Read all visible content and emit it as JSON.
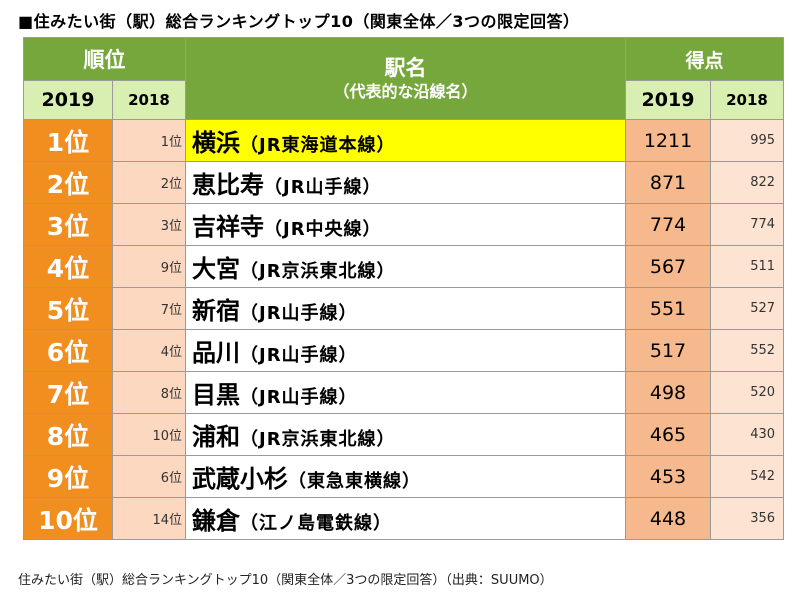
{
  "title": "■住みたい街（駅）総合ランキングトップ10（関東全体／3つの限定回答）",
  "header": {
    "rank_group": "順位",
    "station_main": "駅名",
    "station_sub": "（代表的な沿線名）",
    "points_group": "得点",
    "year_2019": "2019",
    "year_2018": "2018"
  },
  "rows": [
    {
      "rank": "1位",
      "prev": "1位",
      "station": "横浜",
      "line": "（JR東海道本線）",
      "p2019": "1211",
      "p2018": "995"
    },
    {
      "rank": "2位",
      "prev": "2位",
      "station": "恵比寿",
      "line": "（JR山手線）",
      "p2019": "871",
      "p2018": "822"
    },
    {
      "rank": "3位",
      "prev": "3位",
      "station": "吉祥寺",
      "line": "（JR中央線）",
      "p2019": "774",
      "p2018": "774"
    },
    {
      "rank": "4位",
      "prev": "9位",
      "station": "大宮",
      "line": "（JR京浜東北線）",
      "p2019": "567",
      "p2018": "511"
    },
    {
      "rank": "5位",
      "prev": "7位",
      "station": "新宿",
      "line": "（JR山手線）",
      "p2019": "551",
      "p2018": "527"
    },
    {
      "rank": "6位",
      "prev": "4位",
      "station": "品川",
      "line": "（JR山手線）",
      "p2019": "517",
      "p2018": "552"
    },
    {
      "rank": "7位",
      "prev": "8位",
      "station": "目黒",
      "line": "（JR山手線）",
      "p2019": "498",
      "p2018": "520"
    },
    {
      "rank": "8位",
      "prev": "10位",
      "station": "浦和",
      "line": "（JR京浜東北線）",
      "p2019": "465",
      "p2018": "430"
    },
    {
      "rank": "9位",
      "prev": "6位",
      "station": "武蔵小杉",
      "line": "（東急東横線）",
      "p2019": "453",
      "p2018": "542"
    },
    {
      "rank": "10位",
      "prev": "14位",
      "station": "鎌倉",
      "line": "（江ノ島電鉄線）",
      "p2019": "448",
      "p2018": "356"
    }
  ],
  "caption": "住みたい街（駅）総合ランキングトップ10（関東全体／3つの限定回答）（出典：SUUMO）",
  "colors": {
    "header_green": "#76a73c",
    "subheader_green": "#d9efb1",
    "rank_orange": "#f08f1f",
    "highlight_yellow": "#ffff00"
  }
}
